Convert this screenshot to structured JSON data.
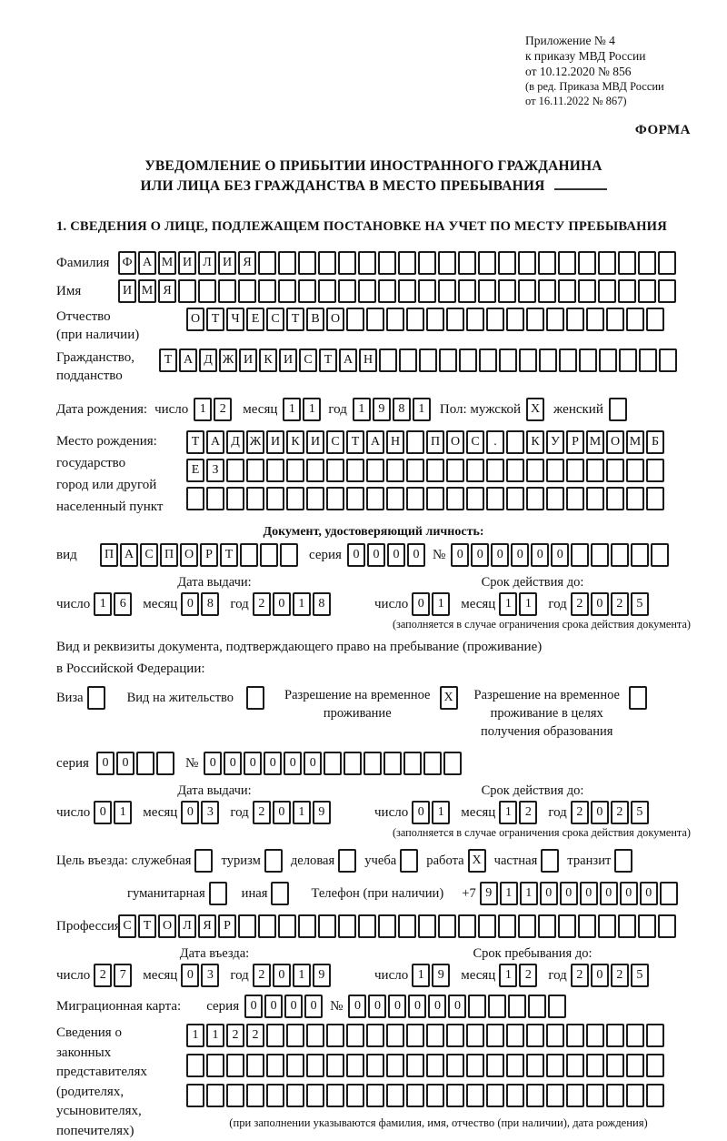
{
  "shared": {
    "day_label": "число",
    "month_label": "месяц",
    "year_label": "год"
  },
  "header": {
    "line1": "Приложение № 4",
    "line2": "к приказу МВД России",
    "line3": "от 10.12.2020 № 856",
    "line4": "(в ред. Приказа МВД России",
    "line5": "от 16.11.2022 № 867)",
    "form_label": "ФОРМА"
  },
  "title": {
    "line1": "УВЕДОМЛЕНИЕ О ПРИБЫТИИ ИНОСТРАННОГО ГРАЖДАНИНА",
    "line2": "ИЛИ ЛИЦА БЕЗ ГРАЖДАНСТВА В МЕСТО ПРЕБЫВАНИЯ"
  },
  "section1_heading": "1. СВЕДЕНИЯ О ЛИЦЕ, ПОДЛЕЖАЩЕМ ПОСТАНОВКЕ НА УЧЕТ ПО МЕСТУ ПРЕБЫВАНИЯ",
  "surname": {
    "label": "Фамилия",
    "v": "ФАМИЛИЯ",
    "n": 28
  },
  "firstname": {
    "label": "Имя",
    "v": "ИМЯ",
    "n": 28
  },
  "patronymic": {
    "label1": "Отчество",
    "label2": "(при наличии)",
    "v": "ОТЧЕСТВО",
    "n": 24
  },
  "citizenship": {
    "label1": "Гражданство,",
    "label2": "подданство",
    "v": "ТАДЖИКИСТАН",
    "n": 26
  },
  "birth_date": {
    "label": "Дата рождения:",
    "day": "12",
    "month": "11",
    "year": "1981",
    "sex_label": "Пол: мужской",
    "male": "X",
    "female_label": "женский",
    "female": ""
  },
  "birth_place": {
    "label": "Место рождения:",
    "sub1": "государство",
    "sub2": "город или другой",
    "sub3": "населенный пункт",
    "row1": {
      "v": "ТАДЖИКИСТАН ПОС. КУРМОМБ",
      "n": 24
    },
    "row2": {
      "v": "ЕЗ",
      "n": 24
    },
    "row3": {
      "v": "",
      "n": 24
    }
  },
  "identity_doc": {
    "heading": "Документ, удостоверяющий личность:",
    "kind_label": "вид",
    "kind": {
      "v": "ПАСПОРТ",
      "n": 10
    },
    "series_label": "серия",
    "series": {
      "v": "0000",
      "n": 4
    },
    "number_label": "№",
    "number": {
      "v": "000000",
      "n": 11
    },
    "issue": {
      "title": "Дата выдачи:",
      "day": "16",
      "month": "08",
      "year": "2018"
    },
    "expiry": {
      "title": "Срок действия до:",
      "day": "01",
      "month": "11",
      "year": "2025"
    },
    "note": "(заполняется в случае ограничения срока действия документа)"
  },
  "residence_doc": {
    "line1": "Вид и реквизиты документа, подтверждающего право на пребывание (проживание)",
    "line2": "в Российской Федерации:",
    "visa_label": "Виза",
    "visa": "",
    "residence_permit_label": "Вид на жительство",
    "residence_permit": "",
    "temp_permit_label1": "Разрешение на временное",
    "temp_permit_label2": "проживание",
    "temp_permit": "X",
    "edu_permit_label1": "Разрешение на временное",
    "edu_permit_label2": "проживание в целях",
    "edu_permit_label3": "получения образования",
    "edu_permit": "",
    "series_label": "серия",
    "series": {
      "v": "00",
      "n": 4
    },
    "number_label": "№",
    "number": {
      "v": "000000",
      "n": 13
    },
    "issue": {
      "title": "Дата выдачи:",
      "day": "01",
      "month": "03",
      "year": "2019"
    },
    "expiry": {
      "title": "Срок действия до:",
      "day": "01",
      "month": "12",
      "year": "2025"
    },
    "note": "(заполняется в случае ограничения срока действия документа)"
  },
  "purpose": {
    "label": "Цель въезда:",
    "items": [
      {
        "label": "служебная",
        "v": ""
      },
      {
        "label": "туризм",
        "v": ""
      },
      {
        "label": "деловая",
        "v": ""
      },
      {
        "label": "учеба",
        "v": ""
      },
      {
        "label": "работа",
        "v": "X"
      },
      {
        "label": "частная",
        "v": ""
      },
      {
        "label": "транзит",
        "v": ""
      },
      {
        "label": "гуманитарная",
        "v": ""
      },
      {
        "label": "иная",
        "v": ""
      }
    ]
  },
  "phone": {
    "label": "Телефон (при наличии)",
    "prefix": "+7",
    "digits": {
      "v": "911000000",
      "n": 10
    }
  },
  "profession": {
    "label": "Профессия",
    "v": "СТОЛЯР",
    "n": 28
  },
  "entry_dates": {
    "issue": {
      "title": "Дата въезда:",
      "day": "27",
      "month": "03",
      "year": "2019"
    },
    "expiry": {
      "title": "Срок пребывания до:",
      "day": "19",
      "month": "12",
      "year": "2025"
    }
  },
  "migration_card": {
    "label": "Миграционная карта:",
    "series_label": "серия",
    "series": {
      "v": "0000",
      "n": 4
    },
    "number_label": "№",
    "number": {
      "v": "000000",
      "n": 11
    }
  },
  "representatives": {
    "label_lines": [
      "Сведения о",
      "законных",
      "представителях",
      "(родителях,",
      "усыновителях,",
      "попечителях)"
    ],
    "row1": {
      "v": "1122",
      "n": 24
    },
    "row2": {
      "v": "",
      "n": 24
    },
    "row3": {
      "v": "",
      "n": 24
    },
    "note": "(при заполнении указываются фамилия, имя, отчество (при наличии), дата рождения)"
  }
}
